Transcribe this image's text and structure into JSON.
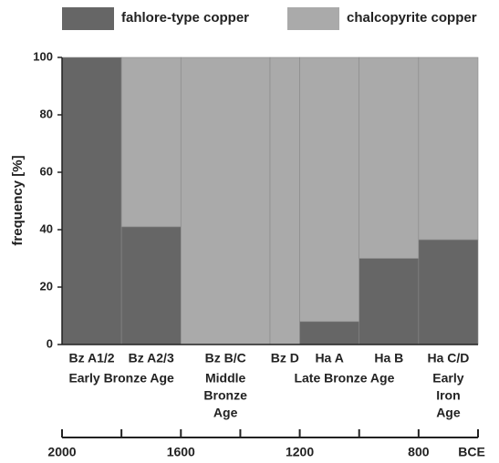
{
  "chart_data": {
    "type": "bar",
    "stacked": true,
    "categories": [
      "Bz A1/2",
      "Bz A2/3",
      "Bz B/C",
      "Bz D",
      "Ha A",
      "Ha B",
      "Ha C/D"
    ],
    "bins": [
      2000,
      1800,
      1600,
      1300,
      1200,
      1000,
      800,
      600
    ],
    "series": [
      {
        "name": "fahlore-type copper",
        "color": "#666666",
        "values": [
          100,
          41,
          0,
          0,
          8,
          30,
          36.5
        ]
      },
      {
        "name": "chalcopyrite copper",
        "color": "#aaaaaa",
        "values": [
          0,
          59,
          100,
          100,
          92,
          70,
          63.5
        ]
      }
    ],
    "ylabel": "frequency [%]",
    "ylim": [
      0,
      100
    ],
    "yticks": [
      0,
      20,
      40,
      60,
      80,
      100
    ],
    "xlim": [
      2000,
      600
    ],
    "xticks": [
      2000,
      1600,
      1200,
      800
    ],
    "xticks_minor": [
      1800,
      1400,
      1000,
      600
    ],
    "xlabel": "BCE",
    "periods": [
      {
        "lines": [
          "Early Bronze Age"
        ],
        "from": 2000,
        "to": 1600
      },
      {
        "lines": [
          "Middle",
          "Bronze",
          "Age"
        ],
        "from": 1600,
        "to": 1300
      },
      {
        "lines": [
          "Late Bronze Age"
        ],
        "from": 1300,
        "to": 800
      },
      {
        "lines": [
          "Early",
          "Iron",
          "Age"
        ],
        "from": 800,
        "to": 600
      }
    ],
    "legend": "top"
  }
}
